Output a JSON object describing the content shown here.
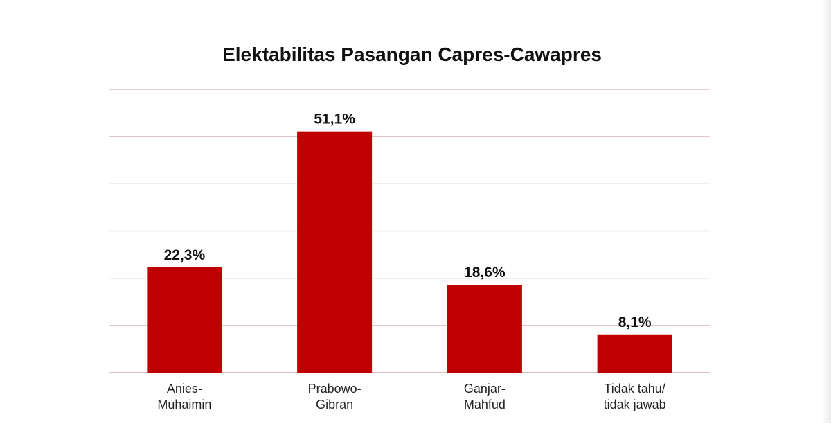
{
  "chart_data": {
    "type": "bar",
    "title": "Elektabilitas Pasangan Capres-Cawapres",
    "xlabel": "",
    "ylabel": "",
    "categories": [
      [
        "Anies-",
        "Muhaimin"
      ],
      [
        "Prabowo-",
        "Gibran"
      ],
      [
        "Ganjar-",
        "Mahfud"
      ],
      [
        "Tidak tahu/",
        "tidak jawab"
      ]
    ],
    "values": [
      22.3,
      51.1,
      18.6,
      8.1
    ],
    "value_labels": [
      "22,3%",
      "51,1%",
      "18,6%",
      "8,1%"
    ],
    "ylim": [
      0,
      60
    ],
    "grid": true,
    "legend": "none",
    "bar_color": "#c00000",
    "grid_color": "#d9b4b4"
  }
}
